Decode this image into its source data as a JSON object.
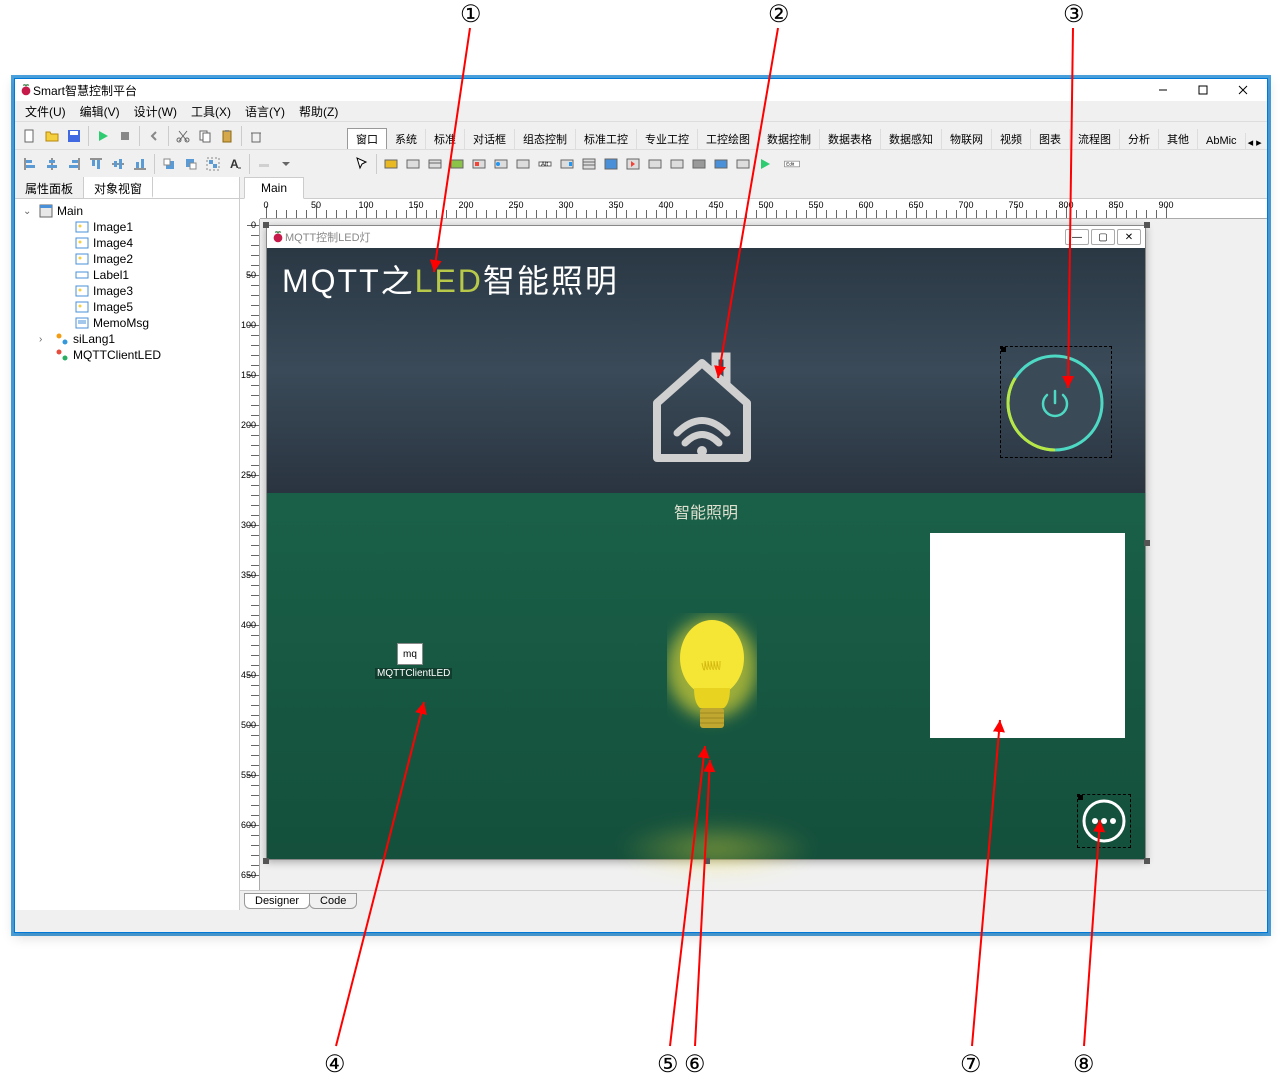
{
  "app": {
    "title": "Smart智慧控制平台",
    "window_buttons": {
      "min": "−",
      "max": "☐",
      "close": "✕"
    }
  },
  "menubar": [
    "文件(U)",
    "编辑(V)",
    "设计(W)",
    "工具(X)",
    "语言(Y)",
    "帮助(Z)"
  ],
  "component_tabs": [
    "窗口",
    "系统",
    "标准",
    "对话框",
    "组态控制",
    "标准工控",
    "专业工控",
    "工控绘图",
    "数据控制",
    "数据表格",
    "数据感知",
    "物联网",
    "视频",
    "图表",
    "流程图",
    "分析",
    "其他",
    "AbMic"
  ],
  "left_panel": {
    "tabs": [
      "属性面板",
      "对象视窗"
    ],
    "active_tab": 1,
    "tree": {
      "root": "Main",
      "items": [
        "Image1",
        "Image4",
        "Image2",
        "Label1",
        "Image3",
        "Image5",
        "MemoMsg"
      ],
      "extra": [
        "siLang1",
        "MQTTClientLED"
      ]
    }
  },
  "designer": {
    "tab": "Main",
    "bottom_tabs": [
      "Designer",
      "Code"
    ],
    "ruler_max_h": 900,
    "ruler_max_v": 650,
    "ruler_step": 50
  },
  "form": {
    "title": "MQTT控制LED灯",
    "heading_part1": "MQTT之",
    "heading_part2": "LED",
    "heading_part3": "智能照明",
    "section_label": "智能照明",
    "mq_text": "mq",
    "mq_label": "MQTTClientLED",
    "colors": {
      "top_bg": "#2f3e4a",
      "bottom_bg": "#16543f",
      "led_accent": "#b8c94a",
      "power_ring": "#4dd9c4",
      "bulb": "#f5e635"
    }
  },
  "callouts": {
    "1": "①",
    "2": "②",
    "3": "③",
    "4": "④",
    "5": "⑤",
    "6": "⑥",
    "7": "⑦",
    "8": "⑧"
  }
}
